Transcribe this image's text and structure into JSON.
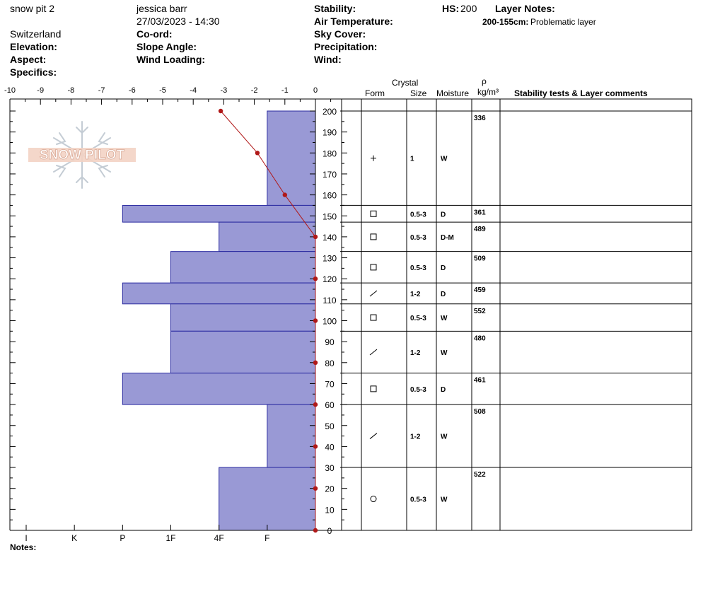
{
  "header": {
    "pit_name": "snow pit 2",
    "observer": "jessica barr",
    "datetime": "27/03/2023 - 14:30",
    "country": "Switzerland",
    "labels": {
      "elevation": "Elevation:",
      "aspect": "Aspect:",
      "specifics": "Specifics:",
      "coord": "Co-ord:",
      "slope_angle": "Slope Angle:",
      "wind_loading": "Wind Loading:",
      "stability": "Stability:",
      "air_temperature": "Air Temperature:",
      "sky_cover": "Sky Cover:",
      "precipitation": "Precipitation:",
      "wind": "Wind:",
      "hs": "HS:",
      "layer_notes": "Layer Notes:"
    },
    "hs_value": "200",
    "layer_note_range": "200-155cm:",
    "layer_note_text": "Problematic layer"
  },
  "table_headers": {
    "crystal": "Crystal",
    "form": "Form",
    "size": "Size",
    "moisture": "Moisture",
    "rho": "ρ",
    "density_unit": "kg/m³",
    "comments": "Stability tests & Layer comments"
  },
  "logo_text": "SNOW PILOT",
  "notes_label": "Notes:",
  "colors": {
    "bar_fill": "#9999d5",
    "bar_stroke": "#2a2aa0",
    "temp_line": "#b01818"
  },
  "chart_data": {
    "type": "bar",
    "y_axis": {
      "range": [
        0,
        200
      ],
      "ticks": [
        0,
        10,
        20,
        30,
        40,
        50,
        60,
        70,
        80,
        90,
        100,
        110,
        120,
        130,
        140,
        150,
        160,
        170,
        180,
        190,
        200
      ]
    },
    "temp_axis": {
      "range": [
        -10,
        0
      ],
      "ticks": [
        -10,
        -9,
        -8,
        -7,
        -6,
        -5,
        -4,
        -3,
        -2,
        -1,
        0
      ]
    },
    "hardness_axis": {
      "labels": [
        {
          "label": "I",
          "value": 6
        },
        {
          "label": "K",
          "value": 5
        },
        {
          "label": "P",
          "value": 4
        },
        {
          "label": "1F",
          "value": 3
        },
        {
          "label": "4F",
          "value": 2
        },
        {
          "label": "F",
          "value": 1
        }
      ]
    },
    "hardness_layers": [
      {
        "top": 200,
        "bottom": 155,
        "hardness": 1
      },
      {
        "top": 155,
        "bottom": 147,
        "hardness": 4
      },
      {
        "top": 147,
        "bottom": 133,
        "hardness": 2
      },
      {
        "top": 133,
        "bottom": 118,
        "hardness": 3
      },
      {
        "top": 118,
        "bottom": 108,
        "hardness": 4
      },
      {
        "top": 108,
        "bottom": 95,
        "hardness": 3
      },
      {
        "top": 95,
        "bottom": 75,
        "hardness": 3
      },
      {
        "top": 75,
        "bottom": 60,
        "hardness": 4
      },
      {
        "top": 60,
        "bottom": 30,
        "hardness": 1
      },
      {
        "top": 30,
        "bottom": 0,
        "hardness": 2
      }
    ],
    "temperature_profile": [
      {
        "depth": 200,
        "temp": -3.1
      },
      {
        "depth": 180,
        "temp": -1.9
      },
      {
        "depth": 160,
        "temp": -1.0
      },
      {
        "depth": 140,
        "temp": 0
      },
      {
        "depth": 120,
        "temp": 0
      },
      {
        "depth": 100,
        "temp": 0
      },
      {
        "depth": 80,
        "temp": 0
      },
      {
        "depth": 60,
        "temp": 0
      },
      {
        "depth": 40,
        "temp": 0
      },
      {
        "depth": 20,
        "temp": 0
      },
      {
        "depth": 0,
        "temp": 0
      }
    ]
  },
  "layers_table": [
    {
      "top": 200,
      "bottom": 155,
      "form": "+",
      "size": "1",
      "moisture": "W",
      "density": "336"
    },
    {
      "top": 155,
      "bottom": 147,
      "form": "□",
      "size": "0.5-3",
      "moisture": "D",
      "density": "361"
    },
    {
      "top": 147,
      "bottom": 133,
      "form": "□",
      "size": "0.5-3",
      "moisture": "D-M",
      "density": "489"
    },
    {
      "top": 133,
      "bottom": 118,
      "form": "□",
      "size": "0.5-3",
      "moisture": "D",
      "density": "509"
    },
    {
      "top": 118,
      "bottom": 108,
      "form": "⁄",
      "size": "1-2",
      "moisture": "D",
      "density": "459"
    },
    {
      "top": 108,
      "bottom": 95,
      "form": "□",
      "size": "0.5-3",
      "moisture": "W",
      "density": "552"
    },
    {
      "top": 95,
      "bottom": 75,
      "form": "⁄",
      "size": "1-2",
      "moisture": "W",
      "density": "480"
    },
    {
      "top": 75,
      "bottom": 60,
      "form": "□",
      "size": "0.5-3",
      "moisture": "D",
      "density": "461"
    },
    {
      "top": 60,
      "bottom": 30,
      "form": "⁄",
      "size": "1-2",
      "moisture": "W",
      "density": "508"
    },
    {
      "top": 30,
      "bottom": 0,
      "form": "○",
      "size": "0.5-3",
      "moisture": "W",
      "density": "522"
    }
  ]
}
